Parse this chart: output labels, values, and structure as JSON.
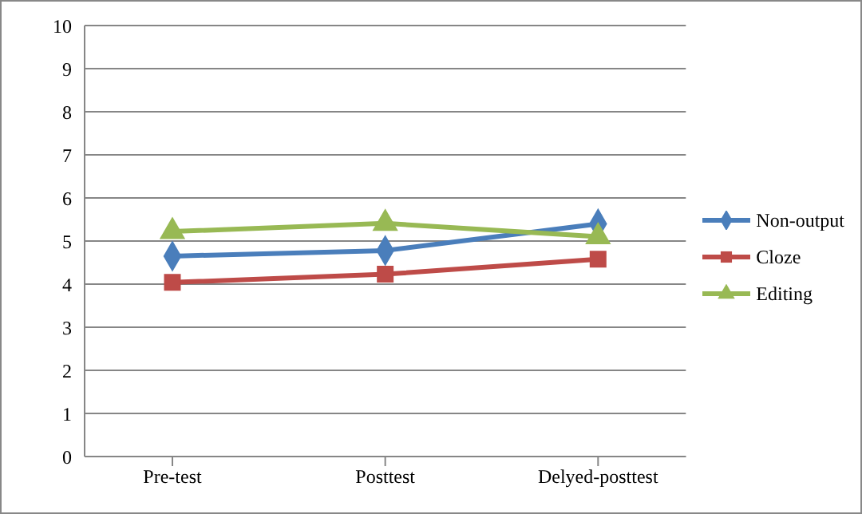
{
  "chart_data": {
    "type": "line",
    "categories": [
      "Pre-test",
      "Posttest",
      "Delyed-posttest"
    ],
    "series": [
      {
        "name": "Non-output",
        "color": "#4a7ebb",
        "values": [
          4.65,
          4.78,
          5.4
        ],
        "marker": "diamond"
      },
      {
        "name": "Cloze",
        "color": "#be4b48",
        "values": [
          4.04,
          4.23,
          4.58
        ],
        "marker": "square"
      },
      {
        "name": "Editing",
        "color": "#98b954",
        "values": [
          5.22,
          5.41,
          5.1
        ],
        "marker": "triangle"
      }
    ],
    "ylim": [
      0,
      10
    ],
    "yticks": [
      0,
      1,
      2,
      3,
      4,
      5,
      6,
      7,
      8,
      9,
      10
    ],
    "grid": "y",
    "legend": "right"
  }
}
